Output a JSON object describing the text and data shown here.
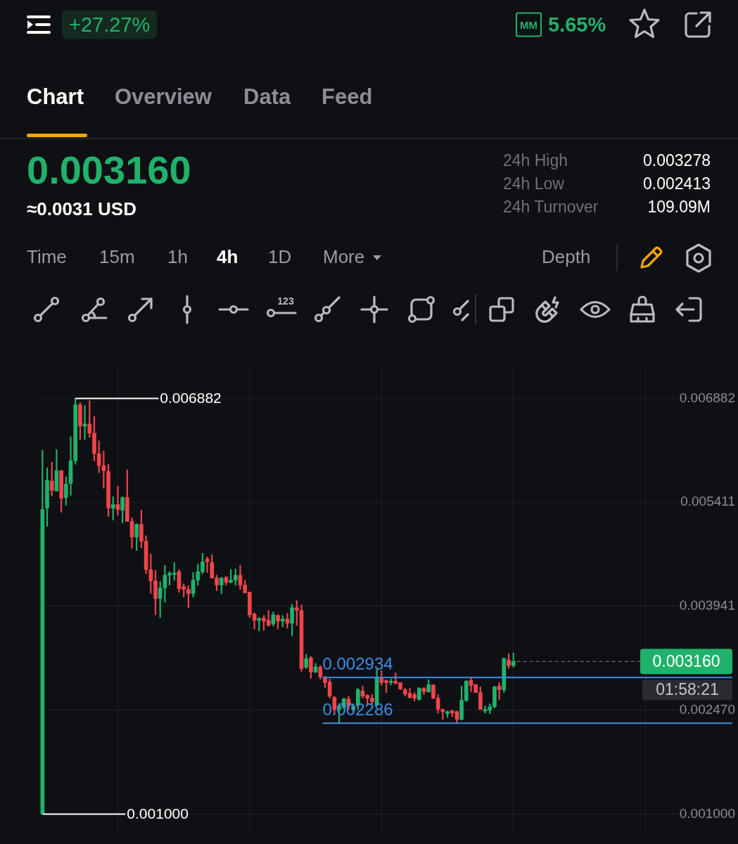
{
  "chart_data": {
    "type": "candlestick",
    "categories": [
      null,
      null,
      null,
      null,
      null,
      null,
      null,
      null,
      null,
      null,
      null,
      null,
      null,
      null,
      null,
      null,
      null,
      null,
      null,
      null,
      null,
      null,
      null,
      null,
      null,
      null,
      null,
      null,
      null,
      null,
      null,
      null,
      null,
      null,
      null,
      null,
      null,
      null,
      null,
      null,
      null,
      null,
      null,
      null,
      null,
      null,
      null,
      null,
      null,
      null,
      null,
      null,
      null,
      null,
      null,
      null,
      null,
      null,
      null,
      null,
      null,
      null,
      null,
      null,
      null,
      null,
      null,
      null,
      null,
      null,
      null,
      null,
      null,
      null,
      null,
      null,
      null,
      null,
      null,
      null,
      null,
      null,
      null,
      null,
      null,
      null,
      null,
      null,
      null,
      null,
      null,
      null,
      null,
      null,
      null,
      null,
      null,
      null,
      null,
      null,
      null,
      null,
      null,
      null,
      null,
      null,
      null,
      null,
      null,
      null,
      null,
      null,
      null,
      null,
      null,
      null,
      null,
      null,
      null,
      null,
      null,
      null,
      null,
      null,
      null,
      null,
      null,
      null,
      null,
      null,
      null,
      null,
      null,
      null,
      null,
      null,
      null,
      null,
      null,
      null,
      null,
      null,
      null,
      null,
      null,
      null,
      null
    ],
    "ohlc": [
      [
        0.001,
        0.00615,
        0.001,
        0.00531
      ],
      [
        0.00533,
        0.0059,
        0.00507,
        0.00572
      ],
      [
        0.00571,
        0.00598,
        0.0055,
        0.00558
      ],
      [
        0.00557,
        0.00616,
        0.00557,
        0.00586
      ],
      [
        0.00586,
        0.00586,
        0.00527,
        0.00547
      ],
      [
        0.00548,
        0.00577,
        0.00537,
        0.00567
      ],
      [
        0.00568,
        0.00634,
        0.00551,
        0.006
      ],
      [
        0.006,
        0.006882,
        0.00595,
        0.00679
      ],
      [
        0.00679,
        0.00682,
        0.0063,
        0.00649
      ],
      [
        0.00649,
        0.00678,
        0.0063,
        0.00652
      ],
      [
        0.00652,
        0.00685,
        0.00633,
        0.00639
      ],
      [
        0.00639,
        0.00663,
        0.006,
        0.0061
      ],
      [
        0.0061,
        0.00628,
        0.00583,
        0.00593
      ],
      [
        0.00593,
        0.00614,
        0.00561,
        0.00586
      ],
      [
        0.00585,
        0.00595,
        0.00521,
        0.00533
      ],
      [
        0.00533,
        0.00549,
        0.00516,
        0.00538
      ],
      [
        0.00538,
        0.00564,
        0.00523,
        0.00531
      ],
      [
        0.0053,
        0.00549,
        0.00512,
        0.00548
      ],
      [
        0.00548,
        0.00587,
        0.00514,
        0.00514
      ],
      [
        0.00514,
        0.00519,
        0.00476,
        0.00492
      ],
      [
        0.00492,
        0.00511,
        0.00473,
        0.0051
      ],
      [
        0.0051,
        0.0053,
        0.00477,
        0.00486
      ],
      [
        0.00486,
        0.00494,
        0.0044,
        0.00446
      ],
      [
        0.00446,
        0.00468,
        0.00412,
        0.0043
      ],
      [
        0.0043,
        0.00445,
        0.00382,
        0.00405
      ],
      [
        0.00405,
        0.00429,
        0.00378,
        0.0042
      ],
      [
        0.0042,
        0.00452,
        0.004,
        0.00438
      ],
      [
        0.00438,
        0.00443,
        0.00424,
        0.00441
      ],
      [
        0.00439,
        0.00456,
        0.00431,
        0.00441
      ],
      [
        0.00443,
        0.00446,
        0.00414,
        0.00419
      ],
      [
        0.00422,
        0.00426,
        0.00407,
        0.00418
      ],
      [
        0.00418,
        0.00423,
        0.00392,
        0.00412
      ],
      [
        0.00412,
        0.00442,
        0.00407,
        0.00431
      ],
      [
        0.00431,
        0.00454,
        0.00424,
        0.00443
      ],
      [
        0.00443,
        0.00469,
        0.0044,
        0.00457
      ],
      [
        0.00461,
        0.00464,
        0.00442,
        0.00457
      ],
      [
        0.00456,
        0.00467,
        0.00434,
        0.00434
      ],
      [
        0.00434,
        0.00438,
        0.00416,
        0.00424
      ],
      [
        0.00424,
        0.00435,
        0.00412,
        0.00434
      ],
      [
        0.00435,
        0.00436,
        0.00424,
        0.00428
      ],
      [
        0.00428,
        0.00446,
        0.00427,
        0.00431
      ],
      [
        0.00431,
        0.00447,
        0.00424,
        0.00438
      ],
      [
        0.00438,
        0.00452,
        0.00418,
        0.00424
      ],
      [
        0.00424,
        0.00431,
        0.00413,
        0.00413
      ],
      [
        0.00414,
        0.00414,
        0.00378,
        0.00382
      ],
      [
        0.00383,
        0.00385,
        0.00362,
        0.00374
      ],
      [
        0.00374,
        0.00378,
        0.00359,
        0.00377
      ],
      [
        0.00377,
        0.00381,
        0.0036,
        0.00373
      ],
      [
        0.00374,
        0.00388,
        0.00366,
        0.00367
      ],
      [
        0.00369,
        0.00386,
        0.00366,
        0.00382
      ],
      [
        0.00381,
        0.00382,
        0.00362,
        0.00373
      ],
      [
        0.00373,
        0.00381,
        0.00365,
        0.00376
      ],
      [
        0.00376,
        0.00384,
        0.00363,
        0.0037
      ],
      [
        0.0037,
        0.00397,
        0.00352,
        0.00392
      ],
      [
        0.00392,
        0.00402,
        0.00367,
        0.00388
      ],
      [
        0.00388,
        0.00396,
        0.00302,
        0.00306
      ],
      [
        0.00308,
        0.00326,
        0.00306,
        0.0032
      ],
      [
        0.00321,
        0.00323,
        0.00292,
        0.00301
      ],
      [
        0.00301,
        0.00313,
        0.003,
        0.00308
      ],
      [
        0.00308,
        0.0031,
        0.00291,
        0.00294
      ],
      [
        0.00292,
        0.00295,
        0.00279,
        0.00286
      ],
      [
        0.00287,
        0.00291,
        0.00264,
        0.00267
      ],
      [
        0.00265,
        0.00267,
        0.00242,
        0.00248
      ],
      [
        0.00248,
        0.00256,
        0.00229,
        0.00253
      ],
      [
        0.00251,
        0.00264,
        0.00249,
        0.00263
      ],
      [
        0.00263,
        0.00267,
        0.00248,
        0.00253
      ],
      [
        0.00248,
        0.00256,
        0.00245,
        0.00253
      ],
      [
        0.00254,
        0.00278,
        0.00248,
        0.00276
      ],
      [
        0.00274,
        0.00281,
        0.00264,
        0.00267
      ],
      [
        0.00268,
        0.00269,
        0.00255,
        0.00264
      ],
      [
        0.00264,
        0.00269,
        0.00256,
        0.00259
      ],
      [
        0.00254,
        0.00305,
        0.00253,
        0.00292
      ],
      [
        0.00292,
        0.00303,
        0.00282,
        0.00286
      ],
      [
        0.00289,
        0.0029,
        0.00272,
        0.00286
      ],
      [
        0.00286,
        0.00291,
        0.00283,
        0.00288
      ],
      [
        0.00288,
        0.003,
        0.00284,
        0.00285
      ],
      [
        0.00286,
        0.00286,
        0.00276,
        0.00277
      ],
      [
        0.00276,
        0.00278,
        0.00267,
        0.0027
      ],
      [
        0.00271,
        0.00278,
        0.00264,
        0.00265
      ],
      [
        0.00269,
        0.00272,
        0.0026,
        0.00264
      ],
      [
        0.00262,
        0.00279,
        0.00261,
        0.00278
      ],
      [
        0.00278,
        0.00279,
        0.00269,
        0.00273
      ],
      [
        0.00273,
        0.0029,
        0.00272,
        0.00283
      ],
      [
        0.00283,
        0.00283,
        0.00263,
        0.00264
      ],
      [
        0.00264,
        0.00269,
        0.00243,
        0.00248
      ],
      [
        0.00248,
        0.00249,
        0.00234,
        0.00245
      ],
      [
        0.00242,
        0.00246,
        0.00237,
        0.00245
      ],
      [
        0.00246,
        0.00247,
        0.00238,
        0.00243
      ],
      [
        0.00245,
        0.00246,
        0.00228,
        0.00234
      ],
      [
        0.00234,
        0.00281,
        0.00233,
        0.00261
      ],
      [
        0.00261,
        0.00289,
        0.00259,
        0.00288
      ],
      [
        0.00289,
        0.00294,
        0.00273,
        0.00282
      ],
      [
        0.00283,
        0.00284,
        0.00272,
        0.00272
      ],
      [
        0.00272,
        0.0028,
        0.00248,
        0.00248
      ],
      [
        0.00246,
        0.00253,
        0.00243,
        0.00248
      ],
      [
        0.00247,
        0.00256,
        0.00242,
        0.00252
      ],
      [
        0.00252,
        0.00281,
        0.0025,
        0.0028
      ],
      [
        0.00281,
        0.00286,
        0.00262,
        0.00276
      ],
      [
        0.00276,
        0.00321,
        0.00272,
        0.0032
      ],
      [
        0.00318,
        0.00327,
        0.00306,
        0.0031
      ],
      [
        0.0031,
        0.00328,
        0.00308,
        0.00316
      ],
      null,
      null,
      null,
      null,
      null,
      null,
      null,
      null,
      null,
      null,
      null,
      null,
      null,
      null,
      null,
      null,
      null,
      null,
      null,
      null,
      null,
      null,
      null,
      null,
      null,
      null,
      null,
      null,
      null,
      null,
      null,
      null,
      null,
      null,
      null,
      null,
      null,
      null,
      null,
      null,
      null,
      null,
      null,
      null,
      null,
      null
    ],
    "colors": [
      "#20b26c",
      "#20b26c",
      "#ef454a",
      "#20b26c",
      "#ef454a",
      "#20b26c",
      "#20b26c",
      "#20b26c",
      "#ef454a",
      "#20b26c",
      "#ef454a",
      "#ef454a",
      "#ef454a",
      "#ef454a",
      "#ef454a",
      "#20b26c",
      "#ef454a",
      "#20b26c",
      "#ef454a",
      "#ef454a",
      "#20b26c",
      "#ef454a",
      "#ef454a",
      "#ef454a",
      "#ef454a",
      "#20b26c",
      "#20b26c",
      "#20b26c",
      "#20b26c",
      "#ef454a",
      "#ef454a",
      "#ef454a",
      "#20b26c",
      "#20b26c",
      "#20b26c",
      "#ef454a",
      "#ef454a",
      "#ef454a",
      "#20b26c",
      "#ef454a",
      "#20b26c",
      "#20b26c",
      "#ef454a",
      "#ef454a",
      "#ef454a",
      "#ef454a",
      "#20b26c",
      "#ef454a",
      "#ef454a",
      "#20b26c",
      "#ef454a",
      "#20b26c",
      "#ef454a",
      "#20b26c",
      "#ef454a",
      "#ef454a",
      "#20b26c",
      "#ef454a",
      "#20b26c",
      "#ef454a",
      "#ef454a",
      "#ef454a",
      "#ef454a",
      "#20b26c",
      "#20b26c",
      "#ef454a",
      "#20b26c",
      "#20b26c",
      "#ef454a",
      "#ef454a",
      "#ef454a",
      "#20b26c",
      "#ef454a",
      "#ef454a",
      "#20b26c",
      "#ef454a",
      "#ef454a",
      "#ef454a",
      "#ef454a",
      "#ef454a",
      "#20b26c",
      "#ef454a",
      "#20b26c",
      "#ef454a",
      "#ef454a",
      "#ef454a",
      "#20b26c",
      "#ef454a",
      "#ef454a",
      "#20b26c",
      "#20b26c",
      "#ef454a",
      "#ef454a",
      "#ef454a",
      "#20b26c",
      "#20b26c",
      "#20b26c",
      "#ef454a",
      "#20b26c",
      "#ef454a",
      "#20b26c",
      null,
      null,
      null,
      null,
      null,
      null,
      null,
      null,
      null,
      null,
      null,
      null,
      null,
      null,
      null,
      null,
      null,
      null,
      null,
      null,
      null,
      null,
      null,
      null,
      null,
      null,
      null,
      null,
      null,
      null,
      null,
      null,
      null,
      null,
      null,
      null,
      null,
      null,
      null,
      null,
      null,
      null,
      null,
      null,
      null,
      null
    ],
    "ylim": [
      0.00073,
      0.00734
    ],
    "yticks": [
      {
        "value": 0.001,
        "label": "0.001000"
      },
      {
        "value": 0.00247,
        "label": "0.002470"
      },
      0.003941,
      0.005411,
      0.006882
    ],
    "grid": true,
    "tick_labels": "y",
    "ref_lines": [
      {
        "axis": "y",
        "value": 0.002934,
        "label": "0.002934",
        "color": "#3a8ee6"
      },
      {
        "axis": "y",
        "value": 0.002286,
        "label": "0.002286",
        "color": "#3a8ee6"
      },
      {
        "axis": "y",
        "value": 0.00316,
        "label": "0.003160",
        "color": "#7d8088",
        "line_style": "dashed"
      }
    ],
    "annotations": [
      "0.006882",
      "0.001000",
      "01:58:21",
      "+27.27%",
      "MM",
      "5.65%",
      "Chart",
      "Overview",
      "Data",
      "Feed",
      "0.003160",
      "≈0.0031 USD",
      "24h High",
      "0.003278",
      "24h Low",
      "0.002413",
      "24h Turnover",
      "109.09M",
      "Time",
      "15m",
      "1h",
      "4h",
      "1D",
      "More",
      "Depth",
      "123"
    ]
  }
}
